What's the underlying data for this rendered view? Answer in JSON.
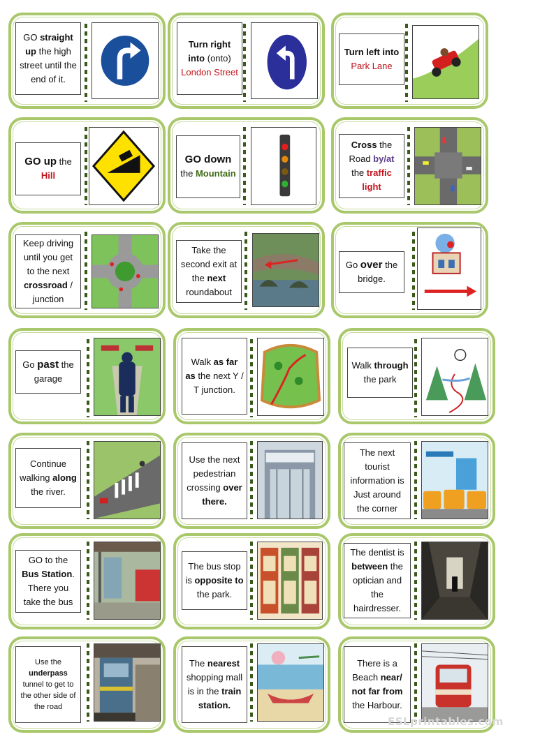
{
  "cards": [
    {
      "id": "c1",
      "segments": [
        {
          "t": "GO "
        },
        {
          "t": "straight up",
          "b": true
        },
        {
          "t": " the high street until the end of it."
        }
      ],
      "image": "turn-right-sign"
    },
    {
      "id": "c2",
      "segments": [
        {
          "t": "Turn right into",
          "b": true
        },
        {
          "t": " (onto) "
        },
        {
          "t": "London Street",
          "c": "red"
        }
      ],
      "image": "turn-left-sign"
    },
    {
      "id": "c3",
      "segments": [
        {
          "t": "Turn left into",
          "b": true
        },
        {
          "t": " "
        },
        {
          "t": "Park Lane",
          "c": "red"
        }
      ],
      "image": "hill-climb-car"
    },
    {
      "id": "c4",
      "segments": [
        {
          "t": "GO up",
          "b": true,
          "big": true
        },
        {
          "t": " the "
        },
        {
          "t": "Hill",
          "c": "red",
          "b": true
        }
      ],
      "image": "steep-hill-sign"
    },
    {
      "id": "c5",
      "segments": [
        {
          "t": "GO down",
          "b": true,
          "big": true
        },
        {
          "t": " the "
        },
        {
          "t": "Mountain",
          "c": "grn",
          "b": true
        }
      ],
      "image": "traffic-light"
    },
    {
      "id": "c6",
      "segments": [
        {
          "t": "Cross",
          "b": true
        },
        {
          "t": " the Road "
        },
        {
          "t": "by/at",
          "c": "pur",
          "b": true
        },
        {
          "t": " the "
        },
        {
          "t": "traffic light",
          "c": "red",
          "b": true
        }
      ],
      "image": "crossroad-aerial"
    },
    {
      "id": "c7",
      "segments": [
        {
          "t": "Keep driving until you get to the next "
        },
        {
          "t": "crossroad",
          "b": true
        },
        {
          "t": " / junction"
        }
      ],
      "image": "roundabout-diagram"
    },
    {
      "id": "c8",
      "segments": [
        {
          "t": "Take the second exit at the "
        },
        {
          "t": "next",
          "b": true
        },
        {
          "t": " roundabout"
        }
      ],
      "image": "stone-bridge"
    },
    {
      "id": "c9",
      "segments": [
        {
          "t": "Go "
        },
        {
          "t": "over",
          "b": true,
          "big": true
        },
        {
          "t": " the bridge."
        }
      ],
      "image": "house-arrow"
    },
    {
      "id": "c10",
      "segments": [
        {
          "t": "Go "
        },
        {
          "t": "past",
          "b": true,
          "big": true
        },
        {
          "t": " the garage"
        }
      ],
      "image": "man-at-junction"
    },
    {
      "id": "c11",
      "segments": [
        {
          "t": "Walk "
        },
        {
          "t": "as far as",
          "b": true
        },
        {
          "t": " the next Y / T junction."
        }
      ],
      "image": "park-path-map"
    },
    {
      "id": "c12",
      "segments": [
        {
          "t": "Walk "
        },
        {
          "t": "through",
          "b": true
        },
        {
          "t": " the park"
        }
      ],
      "image": "river-landscape"
    },
    {
      "id": "c13",
      "segments": [
        {
          "t": "Continue walking "
        },
        {
          "t": "along",
          "b": true
        },
        {
          "t": " the river."
        }
      ],
      "image": "crosswalk-street"
    },
    {
      "id": "c14",
      "segments": [
        {
          "t": "Use the next pedestrian crossing "
        },
        {
          "t": "over there.",
          "b": true
        }
      ],
      "image": "tourist-info-building"
    },
    {
      "id": "c15",
      "segments": [
        {
          "t": "The next tourist information is Just around the corner"
        }
      ],
      "image": "bus-station-poster"
    },
    {
      "id": "c16",
      "segments": [
        {
          "t": "GO to the "
        },
        {
          "t": "Bus Station",
          "b": true
        },
        {
          "t": ". There you take the bus"
        }
      ],
      "image": "bus-stop-shelter"
    },
    {
      "id": "c17",
      "segments": [
        {
          "t": "The bus stop is "
        },
        {
          "t": "opposite to",
          "b": true
        },
        {
          "t": " the park."
        }
      ],
      "image": "shop-fronts"
    },
    {
      "id": "c18",
      "segments": [
        {
          "t": "The dentist is "
        },
        {
          "t": "between",
          "b": true
        },
        {
          "t": " the optician and the hairdresser."
        }
      ],
      "image": "underpass-tunnel"
    },
    {
      "id": "c19",
      "segments": [
        {
          "t": "Use the "
        },
        {
          "t": "underpass",
          "b": true
        },
        {
          "t": " tunnel to get to the other side of the road"
        }
      ],
      "image": "train-platform",
      "small": true
    },
    {
      "id": "c20",
      "segments": [
        {
          "t": "The "
        },
        {
          "t": "nearest",
          "b": true
        },
        {
          "t": " shopping mall is in the "
        },
        {
          "t": "train station.",
          "b": true
        }
      ],
      "image": "beach-boat-painting"
    },
    {
      "id": "c21",
      "segments": [
        {
          "t": "There is a Beach "
        },
        {
          "t": "near/ not far from",
          "b": true
        },
        {
          "t": " the Harbour."
        }
      ],
      "image": "red-tram"
    }
  ],
  "watermark": "ESLprintables.com"
}
